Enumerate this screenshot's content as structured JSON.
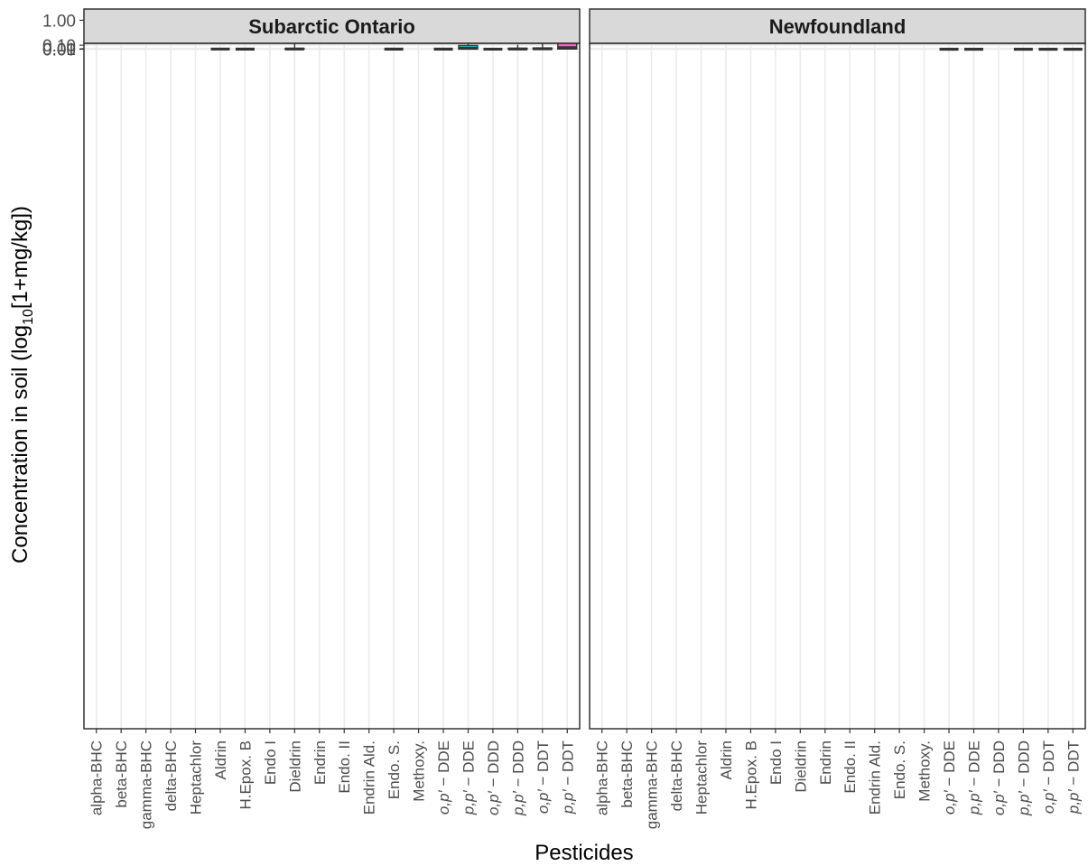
{
  "chart_data": {
    "type": "boxplot",
    "y_scale": "log10(1+x)",
    "ylabel_main": "Concentration in soil (log",
    "ylabel_sub": "10",
    "ylabel_rest": "[1+mg/kg])",
    "xlabel": "Pesticides",
    "y_ticks": [
      "1.00",
      "0.10",
      "0.01",
      "0.00"
    ],
    "grid": true,
    "categories": [
      {
        "label": "alpha-BHC",
        "italic_prefix": "",
        "color": "#F8766D"
      },
      {
        "label": "beta-BHC",
        "italic_prefix": "",
        "color": "#EA8331"
      },
      {
        "label": "gamma-BHC",
        "italic_prefix": "",
        "color": "#D89000"
      },
      {
        "label": "delta-BHC",
        "italic_prefix": "",
        "color": "#C09B00"
      },
      {
        "label": "Heptachlor",
        "italic_prefix": "",
        "color": "#A3A500"
      },
      {
        "label": "Aldrin",
        "italic_prefix": "",
        "color": "#F8766D"
      },
      {
        "label": "H.Epox. B",
        "italic_prefix": "",
        "color": "#E58700"
      },
      {
        "label": "Endo I",
        "italic_prefix": "",
        "color": "#C99800"
      },
      {
        "label": "Dieldrin",
        "italic_prefix": "",
        "color": "#A3A500"
      },
      {
        "label": "Endrin",
        "italic_prefix": "",
        "color": "#6BB100"
      },
      {
        "label": "Endo. II",
        "italic_prefix": "",
        "color": "#00BA38"
      },
      {
        "label": "Endrin Ald.",
        "italic_prefix": "",
        "color": "#00BF7D"
      },
      {
        "label": "Endo. S.",
        "italic_prefix": "",
        "color": "#3AAA00"
      },
      {
        "label": "Methoxy.",
        "italic_prefix": "",
        "color": "#00C0AF"
      },
      {
        "label": "o,p′ − DDE",
        "italic_prefix": "o,p′",
        "rest": " − DDE",
        "color": "#17C17D"
      },
      {
        "label": "p,p′ − DDE",
        "italic_prefix": "p,p′",
        "rest": " − DDE",
        "color": "#17BDC4"
      },
      {
        "label": "o,p′ − DDD",
        "italic_prefix": "o,p′",
        "rest": " − DDD",
        "color": "#19A8F2"
      },
      {
        "label": "p,p′ − DDD",
        "italic_prefix": "p,p′",
        "rest": " − DDD",
        "color": "#9991F8"
      },
      {
        "label": "o,p′ − DDT",
        "italic_prefix": "o,p′",
        "rest": " − DDT",
        "color": "#E47BF1"
      },
      {
        "label": "p,p′ − DDT",
        "italic_prefix": "p,p′",
        "rest": " − DDT",
        "color": "#FB61C3"
      }
    ],
    "panels": [
      {
        "title": "Subarctic Ontario",
        "boxes": [
          {
            "cat": 5,
            "color": "#F8766D",
            "ymin": 0.0016,
            "q1": 0.0027,
            "median": 0.0043,
            "q3": 0.0043,
            "ymax": 0.0043
          },
          {
            "cat": 6,
            "color": "#E58700",
            "ymin": 0.0034,
            "q1": 0.0034,
            "median": 0.0034,
            "q3": 0.0034,
            "ymax": 0.0034
          },
          {
            "cat": 8,
            "color": "#A3A500",
            "ymin": -4e-05,
            "q1": 0.0024,
            "median": 0.0056,
            "q3": 0.0155,
            "ymax": 0.16
          },
          {
            "cat": 12,
            "color": "#3AAA00",
            "ymin": -0.00175,
            "q1": 0.0007,
            "median": 0.0034,
            "q3": 0.0046,
            "ymax": 0.0058
          },
          {
            "cat": 14,
            "color": "#17C17D",
            "ymin": -0.0011,
            "q1": 0.00102,
            "median": 0.003,
            "q3": 0.0054,
            "ymax": 0.015
          },
          {
            "cat": 15,
            "color": "#17BDC4",
            "ymin": -0.00105,
            "q1": 0.0034,
            "median": 0.0205,
            "q3": 0.092,
            "ymax": 0.48
          },
          {
            "cat": 16,
            "color": "#19A8F2",
            "ymin": -0.00155,
            "q1": -3e-05,
            "median": 0.00155,
            "q3": 0.006,
            "ymax": 0.032
          },
          {
            "cat": 17,
            "color": "#9991F8",
            "ymin": -0.0013,
            "q1": 0.0044,
            "median": 0.0058,
            "q3": 0.021,
            "ymax": 0.113
          },
          {
            "cat": 18,
            "color": "#E47BF1",
            "ymin": -0.0016,
            "q1": 0.0015,
            "median": 0.0115,
            "q3": 0.0255,
            "ymax": 0.233
          },
          {
            "cat": 19,
            "color": "#FB61C3",
            "ymin": -0.00165,
            "q1": 0.0043,
            "median": 0.035,
            "q3": 0.158,
            "ymax": 0.74
          }
        ]
      },
      {
        "title": "Newfoundland",
        "boxes": [
          {
            "cat": 14,
            "color": "#17C17D",
            "ymin": -0.00032,
            "q1": -0.00032,
            "median": -0.00032,
            "q3": -0.00032,
            "ymax": -0.00032
          },
          {
            "cat": 15,
            "color": "#17BDC4",
            "ymin": -0.00175,
            "q1": -0.00087,
            "median": 2e-05,
            "q3": 0.00075,
            "ymax": 0.0016
          },
          {
            "cat": 17,
            "color": "#9991F8",
            "ymin": 0.00027,
            "q1": 0.00027,
            "median": 0.00027,
            "q3": 0.00027,
            "ymax": 0.00027
          },
          {
            "cat": 18,
            "color": "#E47BF1",
            "ymin": -0.00028,
            "q1": -0.00028,
            "median": -0.00028,
            "q3": -0.00028,
            "ymax": -0.00028
          },
          {
            "cat": 19,
            "color": "#FB61C3",
            "ymin": -0.00062,
            "q1": -5e-05,
            "median": 0.00037,
            "q3": 0.00155,
            "ymax": 0.0026
          }
        ]
      }
    ]
  }
}
